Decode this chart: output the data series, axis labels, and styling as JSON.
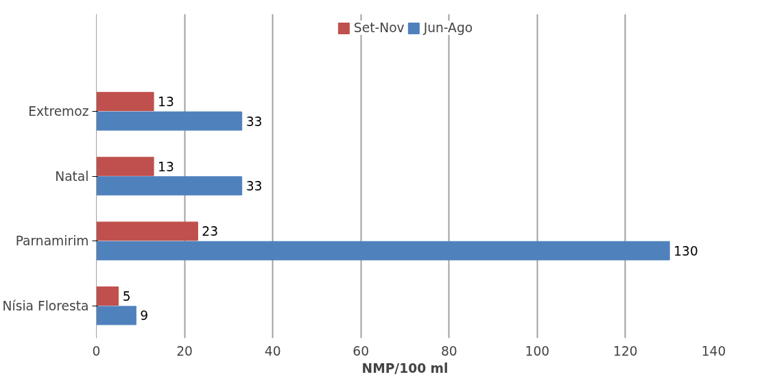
{
  "chart_data": {
    "type": "bar",
    "orientation": "horizontal",
    "xlabel": "NMP/100 ml",
    "categories": [
      "Extremoz",
      "Natal",
      "Parnamirim",
      "Nísia Floresta"
    ],
    "series": [
      {
        "name": "Set-Nov",
        "color": "#c0504d",
        "values": [
          13,
          13,
          23,
          5
        ]
      },
      {
        "name": "Jun-Ago",
        "color": "#4f81bd",
        "values": [
          33,
          33,
          130,
          9
        ]
      }
    ],
    "xlim": [
      0,
      140
    ],
    "xticks": [
      0,
      20,
      40,
      60,
      80,
      100,
      120,
      140
    ],
    "grid": "x",
    "legend": "top",
    "data_labels": true
  }
}
